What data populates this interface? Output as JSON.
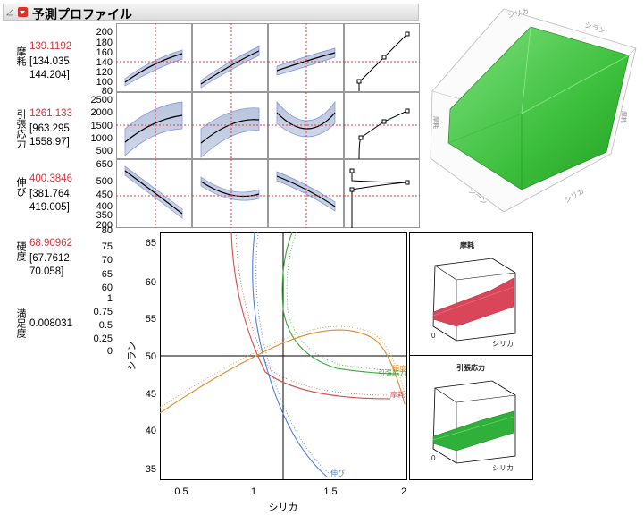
{
  "profiler": {
    "title": "予測プロファイル",
    "responses": [
      {
        "name": "摩耗",
        "value": "139.1192",
        "ci_low": "[134.035,",
        "ci_high": "144.204]",
        "ticks": [
          "200",
          "180",
          "160",
          "140",
          "120",
          "100",
          "80"
        ]
      },
      {
        "name": "引張応力",
        "value": "1261.133",
        "ci_low": "[963.295,",
        "ci_high": "1558.97]",
        "ticks": [
          "2500",
          "2000",
          "1500",
          "1000",
          "500"
        ]
      },
      {
        "name": "伸び",
        "value": "400.3846",
        "ci_low": "[381.764,",
        "ci_high": "419.005]",
        "ticks": [
          "650",
          "500",
          "450",
          "400",
          "350",
          "200"
        ]
      },
      {
        "name": "硬度",
        "value": "68.90962",
        "ci_low": "[67.7612,",
        "ci_high": "70.058]",
        "ticks": [
          "80",
          "75",
          "70",
          "65",
          "60"
        ]
      },
      {
        "name": "満足度",
        "value": "0.008031",
        "ci_low": "",
        "ci_high": "",
        "ticks": [
          "1",
          "0.75",
          "0.5",
          "0.25",
          "0"
        ]
      }
    ]
  },
  "surface": {
    "axis_labels": [
      "シリカ",
      "シラン",
      "摩耗",
      "摩耗",
      "シリカ",
      "シラン"
    ]
  },
  "contour": {
    "xlabel": "シリカ",
    "ylabel": "シラン",
    "x_ticks": [
      "0.5",
      "1",
      "1.5",
      "2"
    ],
    "y_ticks": [
      "65",
      "60",
      "55",
      "50",
      "45",
      "40",
      "35"
    ],
    "curve_labels": {
      "elong": "伸び",
      "tensile": "引張応力",
      "hardness": "硬度",
      "abrasion": "摩耗"
    },
    "colors": {
      "abrasion": "#d94a4a",
      "tensile": "#3aa83a",
      "elong": "#4a7fd9",
      "hardness": "#e0892f"
    }
  },
  "mini_surfaces": [
    {
      "title": "摩耗",
      "zero": "0",
      "xlabel": "シリカ",
      "color": "#d9465a"
    },
    {
      "title": "引張応力",
      "zero": "0",
      "xlabel": "シリカ",
      "color": "#2fb03a"
    }
  ]
}
